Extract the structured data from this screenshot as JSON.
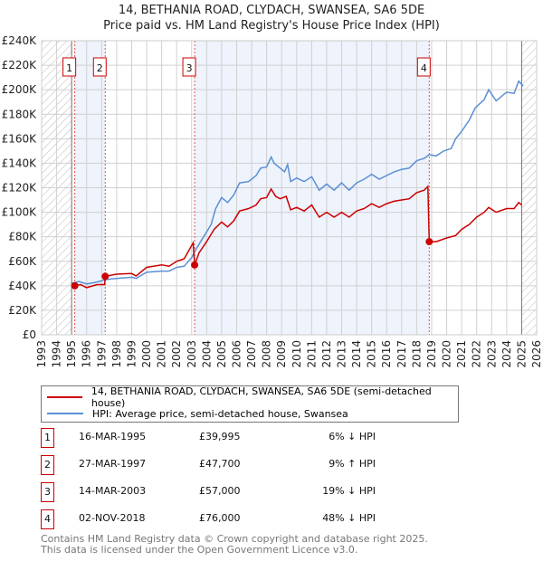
{
  "chart_data": {
    "type": "line",
    "title": "14, BETHANIA ROAD, CLYDACH, SWANSEA, SA6 5DE",
    "subtitle": "Price paid vs. HM Land Registry's House Price Index (HPI)",
    "xlim": [
      1993,
      2026
    ],
    "ylim": [
      0,
      240000
    ],
    "x_ticks": [
      "1993",
      "1994",
      "1995",
      "1996",
      "1997",
      "1998",
      "1999",
      "2000",
      "2001",
      "2002",
      "2003",
      "2004",
      "2005",
      "2006",
      "2007",
      "2008",
      "2009",
      "2010",
      "2011",
      "2012",
      "2013",
      "2014",
      "2015",
      "2016",
      "2017",
      "2018",
      "2019",
      "2020",
      "2021",
      "2022",
      "2023",
      "2024",
      "2025",
      "2026"
    ],
    "y_ticks": [
      "£0",
      "£20K",
      "£40K",
      "£60K",
      "£80K",
      "£100K",
      "£120K",
      "£140K",
      "£160K",
      "£180K",
      "£200K",
      "£220K",
      "£240K"
    ],
    "grid": true,
    "series": [
      {
        "name": "14, BETHANIA ROAD, CLYDACH, SWANSEA, SA6 5DE (semi-detached house)",
        "color": "#cc0000",
        "x": [
          1995.21,
          1995.6,
          1996,
          1996.7,
          1997.2,
          1997.24,
          1998,
          1999,
          1999.3,
          2000,
          2001,
          2001.5,
          2002,
          2002.5,
          2003.1,
          2003.2,
          2003.5,
          2004,
          2004.5,
          2005,
          2005.4,
          2005.8,
          2006.2,
          2006.8,
          2007.3,
          2007.6,
          2008,
          2008.3,
          2008.6,
          2008.9,
          2009.3,
          2009.6,
          2010,
          2010.5,
          2011,
          2011.5,
          2012,
          2012.5,
          2013,
          2013.5,
          2014,
          2014.5,
          2015,
          2015.5,
          2016,
          2016.5,
          2017,
          2017.5,
          2018,
          2018.5,
          2018.75,
          2018.84,
          2019.3,
          2020,
          2020.6,
          2021,
          2021.5,
          2022,
          2022.5,
          2022.8,
          2023.3,
          2024,
          2024.5,
          2024.8,
          2025.0
        ],
        "y": [
          39995,
          41000,
          38500,
          41000,
          41000,
          47700,
          49500,
          50000,
          48000,
          55000,
          57000,
          56000,
          60000,
          62000,
          75000,
          57000,
          67000,
          76000,
          86000,
          92000,
          88000,
          93000,
          101000,
          103000,
          106000,
          111000,
          112000,
          119000,
          113000,
          111000,
          113000,
          102000,
          104000,
          101000,
          106000,
          96000,
          100000,
          96000,
          100000,
          96000,
          101000,
          103000,
          107000,
          104000,
          107000,
          109000,
          110000,
          111000,
          116000,
          118000,
          121000,
          76000,
          76000,
          79000,
          81000,
          86000,
          90000,
          96000,
          100000,
          104000,
          100000,
          103000,
          103000,
          108000,
          106000
        ]
      },
      {
        "name": "HPI: Average price, semi-detached house, Swansea",
        "color": "#5b8fd4",
        "x": [
          1995,
          1995.5,
          1996,
          1996.5,
          1997,
          1997.2,
          1998,
          1999,
          1999.3,
          2000,
          2001,
          2001.5,
          2002,
          2002.5,
          2003,
          2003.3,
          2003.8,
          2004.3,
          2004.6,
          2005,
          2005.4,
          2005.8,
          2006.2,
          2006.8,
          2007.3,
          2007.6,
          2008,
          2008.3,
          2008.5,
          2008.9,
          2009.2,
          2009.4,
          2009.6,
          2010,
          2010.5,
          2011,
          2011.5,
          2012,
          2012.5,
          2013,
          2013.5,
          2014,
          2014.5,
          2015,
          2015.5,
          2016,
          2016.5,
          2017,
          2017.5,
          2018,
          2018.5,
          2018.84,
          2019.3,
          2019.8,
          2020.3,
          2020.6,
          2021,
          2021.5,
          2021.9,
          2022.5,
          2022.8,
          2023.3,
          2023.8,
          2024,
          2024.5,
          2024.8,
          2025.1
        ],
        "y": [
          42000,
          43500,
          41500,
          42500,
          44000,
          45000,
          46000,
          47000,
          46000,
          51000,
          52000,
          52000,
          55000,
          56000,
          63000,
          70000,
          80000,
          90000,
          103000,
          112000,
          108000,
          114000,
          124000,
          125000,
          130000,
          136000,
          137000,
          145000,
          140000,
          136000,
          133000,
          139000,
          125000,
          128000,
          125000,
          129000,
          118000,
          123000,
          118000,
          124000,
          118000,
          124000,
          127000,
          131000,
          127000,
          130000,
          133000,
          135000,
          136000,
          142000,
          144000,
          147000,
          146000,
          150000,
          152000,
          160000,
          166000,
          175000,
          185000,
          192000,
          200000,
          191000,
          196000,
          198000,
          197000,
          207000,
          203000
        ]
      }
    ],
    "sales": [
      {
        "label": "1",
        "x": 1995.21,
        "y": 39995
      },
      {
        "label": "2",
        "x": 1997.24,
        "y": 47700
      },
      {
        "label": "3",
        "x": 2003.2,
        "y": 57000
      },
      {
        "label": "4",
        "x": 2018.84,
        "y": 76000
      }
    ],
    "shaded_ranges": [
      [
        1995.21,
        1997.24
      ],
      [
        2003.2,
        2018.84
      ]
    ],
    "hatched_ranges": [
      [
        1993,
        1995
      ],
      [
        2025,
        2026
      ]
    ]
  },
  "legend": {
    "red": "14, BETHANIA ROAD, CLYDACH, SWANSEA, SA6 5DE (semi-detached house)",
    "blue": "HPI: Average price, semi-detached house, Swansea"
  },
  "table": [
    {
      "num": "1",
      "date": "16-MAR-1995",
      "price": "£39,995",
      "hpi": "6% ↓ HPI"
    },
    {
      "num": "2",
      "date": "27-MAR-1997",
      "price": "£47,700",
      "hpi": "9% ↑ HPI"
    },
    {
      "num": "3",
      "date": "14-MAR-2003",
      "price": "£57,000",
      "hpi": "19% ↓ HPI"
    },
    {
      "num": "4",
      "date": "02-NOV-2018",
      "price": "£76,000",
      "hpi": "48% ↓ HPI"
    }
  ],
  "footer": {
    "line1": "Contains HM Land Registry data © Crown copyright and database right 2025.",
    "line2": "This data is licensed under the Open Government Licence v3.0."
  }
}
